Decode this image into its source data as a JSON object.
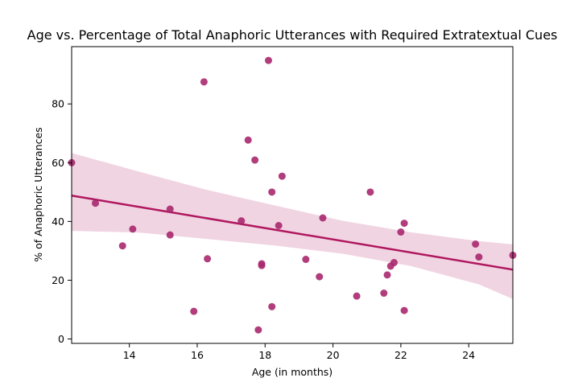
{
  "chart_data": {
    "type": "scatter",
    "title": "Age vs. Percentage of Total Anaphoric Utterances with Required Extratextual Cues",
    "xlabel": "Age (in months)",
    "ylabel": "% of Anaphoric Utterances",
    "xlim": [
      12.3,
      25.3
    ],
    "ylim": [
      -1.5,
      99.5
    ],
    "xticks": [
      14,
      16,
      18,
      20,
      22,
      24
    ],
    "yticks": [
      0,
      20,
      40,
      60,
      80
    ],
    "grid": false,
    "legend": "none",
    "point_color": "#a8286e",
    "line_color": "#b0175f",
    "band_color": "#f0d4e2",
    "points": [
      {
        "x": 12.3,
        "y": 60.0
      },
      {
        "x": 13.0,
        "y": 46.2
      },
      {
        "x": 13.8,
        "y": 31.7
      },
      {
        "x": 14.1,
        "y": 37.4
      },
      {
        "x": 15.2,
        "y": 44.2
      },
      {
        "x": 15.2,
        "y": 35.4
      },
      {
        "x": 15.9,
        "y": 9.4
      },
      {
        "x": 16.2,
        "y": 87.5
      },
      {
        "x": 16.3,
        "y": 27.3
      },
      {
        "x": 17.3,
        "y": 40.2
      },
      {
        "x": 17.5,
        "y": 67.7
      },
      {
        "x": 17.7,
        "y": 60.9
      },
      {
        "x": 17.8,
        "y": 3.1
      },
      {
        "x": 17.9,
        "y": 25.6
      },
      {
        "x": 17.9,
        "y": 25.0
      },
      {
        "x": 18.1,
        "y": 94.8
      },
      {
        "x": 18.2,
        "y": 50.0
      },
      {
        "x": 18.2,
        "y": 11.0
      },
      {
        "x": 18.4,
        "y": 38.6
      },
      {
        "x": 18.5,
        "y": 55.4
      },
      {
        "x": 19.2,
        "y": 27.1
      },
      {
        "x": 19.6,
        "y": 21.2
      },
      {
        "x": 19.7,
        "y": 41.2
      },
      {
        "x": 20.7,
        "y": 14.6
      },
      {
        "x": 21.1,
        "y": 50.0
      },
      {
        "x": 21.5,
        "y": 15.6
      },
      {
        "x": 21.6,
        "y": 21.8
      },
      {
        "x": 21.7,
        "y": 24.8
      },
      {
        "x": 21.8,
        "y": 26.0
      },
      {
        "x": 22.0,
        "y": 36.4
      },
      {
        "x": 22.1,
        "y": 39.4
      },
      {
        "x": 22.1,
        "y": 9.7
      },
      {
        "x": 24.2,
        "y": 32.3
      },
      {
        "x": 24.3,
        "y": 27.9
      },
      {
        "x": 25.3,
        "y": 28.5
      }
    ],
    "regression": {
      "x": [
        12.3,
        25.3
      ],
      "y": [
        48.8,
        23.6
      ]
    },
    "confidence_band": {
      "x": [
        12.3,
        14.3,
        16.3,
        18.3,
        20.3,
        22.3,
        24.3,
        25.3
      ],
      "upper": [
        63.3,
        56.9,
        50.7,
        45.4,
        40.2,
        36.3,
        33.3,
        32.2
      ],
      "lower": [
        36.8,
        36.2,
        34.0,
        31.8,
        29.0,
        24.8,
        18.6,
        13.6
      ]
    }
  }
}
